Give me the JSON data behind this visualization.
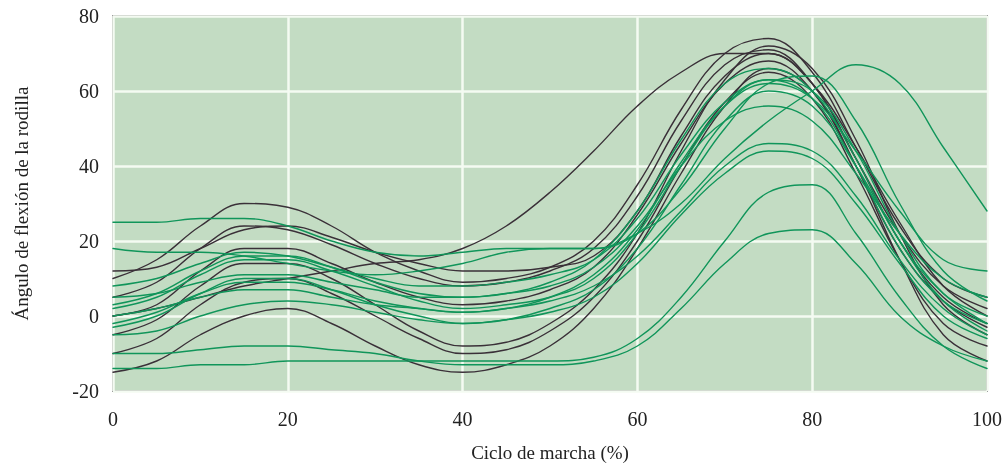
{
  "chart_data": {
    "type": "line",
    "xlabel": "Ciclo de marcha (%)",
    "ylabel": "Ángulo de flexión de la rodilla",
    "x": [
      0,
      5,
      10,
      15,
      20,
      25,
      30,
      35,
      40,
      45,
      50,
      55,
      60,
      65,
      70,
      75,
      80,
      85,
      90,
      95,
      100
    ],
    "xlim": [
      0,
      100
    ],
    "xticks": [
      0,
      20,
      40,
      60,
      80,
      100
    ],
    "ylim": [
      -20,
      80
    ],
    "yticks": [
      -20,
      0,
      20,
      40,
      60,
      80
    ],
    "grid": true,
    "marker": "none",
    "line_style": "solid",
    "series": [
      {
        "color": "#3a3038",
        "values": [
          10,
          15,
          24,
          30,
          29,
          24,
          17,
          12,
          9,
          10,
          13,
          20,
          35,
          55,
          70,
          74,
          65,
          45,
          24,
          10,
          5
        ]
      },
      {
        "color": "#3a3038",
        "values": [
          5,
          9,
          18,
          24,
          23,
          19,
          14,
          10,
          8,
          9,
          12,
          18,
          32,
          52,
          67,
          71,
          62,
          42,
          22,
          8,
          2
        ]
      },
      {
        "color": "#3a3038",
        "values": [
          0,
          3,
          12,
          18,
          18,
          14,
          9,
          5,
          3,
          4,
          7,
          13,
          27,
          46,
          62,
          68,
          60,
          40,
          18,
          4,
          -3
        ]
      },
      {
        "color": "#3a3038",
        "values": [
          -10,
          -6,
          3,
          9,
          10,
          6,
          0,
          -6,
          -10,
          -9,
          -4,
          5,
          20,
          40,
          57,
          65,
          58,
          38,
          15,
          -2,
          -8
        ]
      },
      {
        "color": "#3a3038",
        "values": [
          0,
          2,
          5,
          8,
          10,
          12,
          14,
          15,
          18,
          24,
          33,
          44,
          56,
          65,
          70,
          70,
          62,
          45,
          25,
          8,
          0
        ]
      },
      {
        "color": "#3a3038",
        "values": [
          -5,
          -1,
          8,
          14,
          14,
          10,
          3,
          -4,
          -8,
          -7,
          -2,
          7,
          22,
          44,
          63,
          72,
          66,
          47,
          22,
          3,
          -5
        ]
      },
      {
        "color": "#3a3038",
        "values": [
          -15,
          -12,
          -5,
          0,
          2,
          -2,
          -8,
          -13,
          -15,
          -13,
          -8,
          2,
          18,
          38,
          56,
          66,
          60,
          40,
          15,
          -5,
          -12
        ]
      },
      {
        "color": "#3a3038",
        "values": [
          12,
          13,
          18,
          23,
          24,
          21,
          17,
          14,
          12,
          12,
          13,
          16,
          28,
          48,
          64,
          70,
          62,
          42,
          20,
          5,
          -2
        ]
      },
      {
        "color": "#10955a",
        "values": [
          25,
          25,
          26,
          26,
          24,
          20,
          17,
          16,
          17,
          18,
          18,
          18,
          22,
          30,
          42,
          52,
          60,
          67,
          62,
          45,
          28
        ]
      },
      {
        "color": "#10955a",
        "values": [
          -10,
          -10,
          -9,
          -8,
          -8,
          -9,
          -10,
          -12,
          -13,
          -13,
          -13,
          -12,
          -8,
          2,
          14,
          22,
          23,
          14,
          0,
          -8,
          -12
        ]
      },
      {
        "color": "#10955a",
        "values": [
          -14,
          -14,
          -13,
          -13,
          -12,
          -12,
          -12,
          -12,
          -12,
          -12,
          -12,
          -11,
          -6,
          5,
          20,
          33,
          35,
          22,
          5,
          -8,
          -14
        ]
      },
      {
        "color": "#10955a",
        "values": [
          2,
          5,
          11,
          15,
          15,
          12,
          8,
          4,
          2,
          3,
          5,
          10,
          22,
          40,
          56,
          63,
          60,
          44,
          22,
          6,
          0
        ]
      },
      {
        "color": "#10955a",
        "values": [
          -3,
          0,
          6,
          10,
          10,
          7,
          3,
          0,
          -2,
          -1,
          2,
          7,
          18,
          35,
          52,
          60,
          56,
          40,
          20,
          4,
          -4
        ]
      },
      {
        "color": "#10955a",
        "values": [
          8,
          10,
          14,
          17,
          16,
          13,
          10,
          8,
          8,
          9,
          11,
          15,
          26,
          43,
          57,
          63,
          58,
          40,
          18,
          4,
          -2
        ]
      },
      {
        "color": "#10955a",
        "values": [
          0,
          2,
          5,
          7,
          7,
          5,
          3,
          2,
          1,
          2,
          4,
          8,
          16,
          28,
          40,
          46,
          44,
          32,
          15,
          2,
          -5
        ]
      },
      {
        "color": "#10955a",
        "values": [
          5,
          6,
          9,
          11,
          11,
          9,
          7,
          5,
          5,
          6,
          8,
          13,
          24,
          40,
          52,
          56,
          52,
          38,
          22,
          10,
          5
        ]
      },
      {
        "color": "#10955a",
        "values": [
          -5,
          -4,
          0,
          3,
          4,
          3,
          1,
          -1,
          -2,
          -1,
          1,
          5,
          14,
          27,
          38,
          44,
          42,
          30,
          14,
          0,
          -6
        ]
      },
      {
        "color": "#10955a",
        "values": [
          18,
          17,
          17,
          16,
          14,
          12,
          11,
          12,
          14,
          17,
          18,
          18,
          22,
          34,
          50,
          62,
          64,
          52,
          30,
          12,
          4
        ]
      },
      {
        "color": "#10955a",
        "values": [
          3,
          6,
          12,
          16,
          16,
          13,
          9,
          6,
          5,
          6,
          9,
          15,
          28,
          47,
          62,
          66,
          60,
          42,
          20,
          6,
          -2
        ]
      },
      {
        "color": "#10955a",
        "values": [
          -2,
          1,
          6,
          9,
          9,
          7,
          4,
          2,
          1,
          2,
          5,
          11,
          23,
          41,
          56,
          62,
          58,
          44,
          28,
          15,
          12
        ]
      }
    ]
  }
}
